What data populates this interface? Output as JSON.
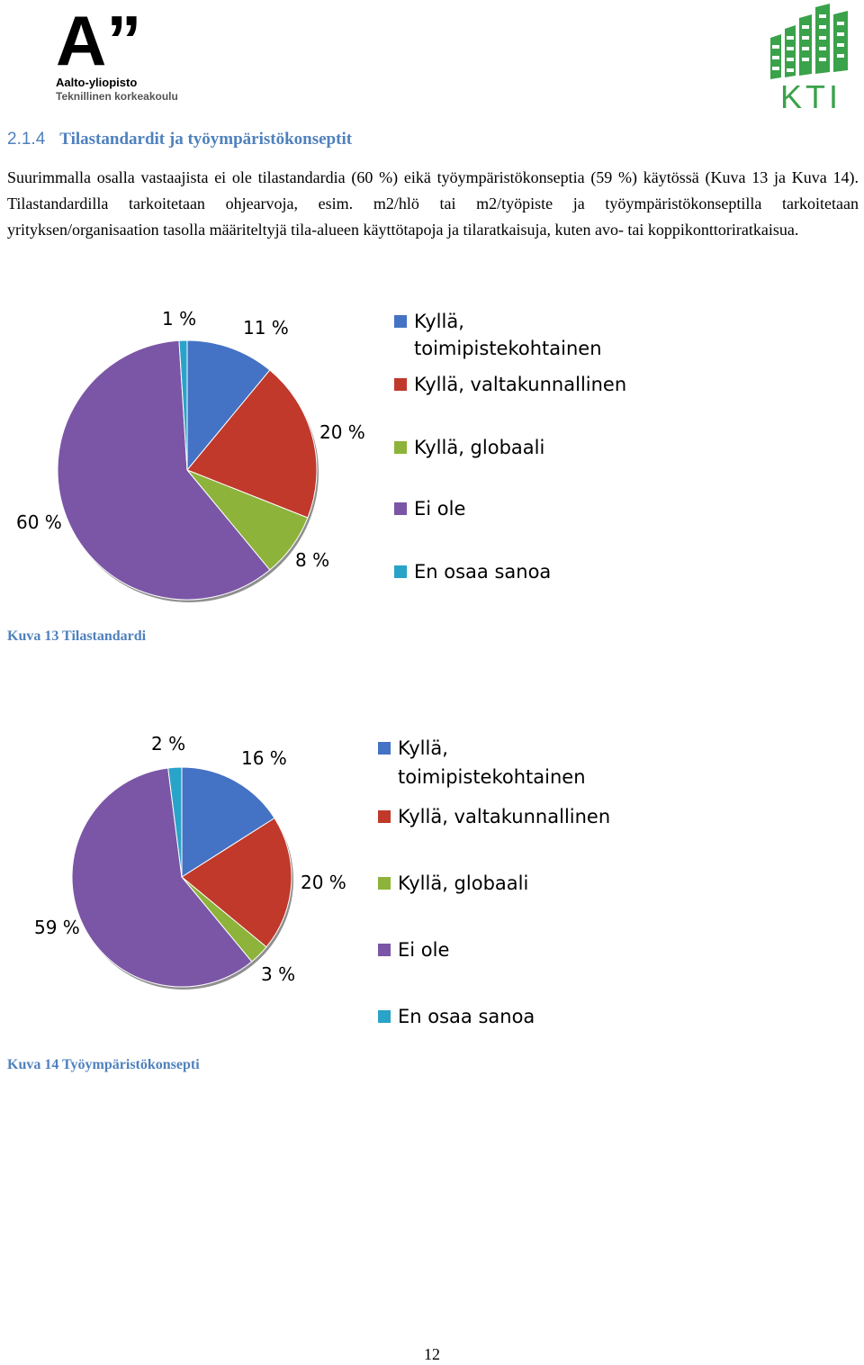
{
  "header": {
    "aalto_logo_mark": "A”",
    "aalto_name": "Aalto-yliopisto",
    "aalto_subtitle": "Teknillinen korkeakoulu",
    "kti_logo_text": "KTI",
    "kti_color": "#3aa24a"
  },
  "section": {
    "number": "2.1.4",
    "title": "Tilastandardit ja työympäristökonseptit"
  },
  "paragraph": "Suurimmalla osalla vastaajista ei ole tilastandardia (60 %) eikä työympäristökonseptia (59 %) käytössä (Kuva 13 ja Kuva 14). Tilastandardilla tarkoitetaan ohjearvoja, esim. m2/hlö tai m2/työpiste ja työympäristökonseptilla tarkoitetaan yrityksen/organisaation tasolla määriteltyjä tila-alueen käyttötapoja ja tilaratkaisuja, kuten avo- tai koppikonttoriratkaisua.",
  "chart_data": [
    {
      "type": "pie",
      "title": "",
      "caption": "Kuva 13 Tilastandardi",
      "categories": [
        "Kyllä, toimipistekohtainen",
        "Kyllä, valtakunnallinen",
        "Kyllä, globaali",
        "Ei ole",
        "En osaa sanoa"
      ],
      "values": [
        11,
        20,
        8,
        60,
        1
      ],
      "labels": [
        "11 %",
        "20 %",
        "8 %",
        "60 %",
        "1 %"
      ],
      "colors": [
        "#4472c4",
        "#c0392b",
        "#8db33a",
        "#7b56a6",
        "#2aa3c8"
      ],
      "legend_position": "right",
      "legend": [
        "Kyllä,",
        "toimipistekohtainen",
        "Kyllä, valtakunnallinen",
        "Kyllä, globaali",
        "Ei ole",
        "En osaa sanoa"
      ]
    },
    {
      "type": "pie",
      "title": "",
      "caption": "Kuva 14 Työympäristökonsepti",
      "categories": [
        "Kyllä, toimipistekohtainen",
        "Kyllä, valtakunnallinen",
        "Kyllä, globaali",
        "Ei ole",
        "En osaa sanoa"
      ],
      "values": [
        16,
        20,
        3,
        59,
        2
      ],
      "labels": [
        "16 %",
        "20 %",
        "3 %",
        "59 %",
        "2 %"
      ],
      "colors": [
        "#4472c4",
        "#c0392b",
        "#8db33a",
        "#7b56a6",
        "#2aa3c8"
      ],
      "legend_position": "right",
      "legend": [
        "Kyllä,",
        "toimipistekohtainen",
        "Kyllä, valtakunnallinen",
        "Kyllä, globaali",
        "Ei ole",
        "En osaa sanoa"
      ]
    }
  ],
  "page_number": "12"
}
